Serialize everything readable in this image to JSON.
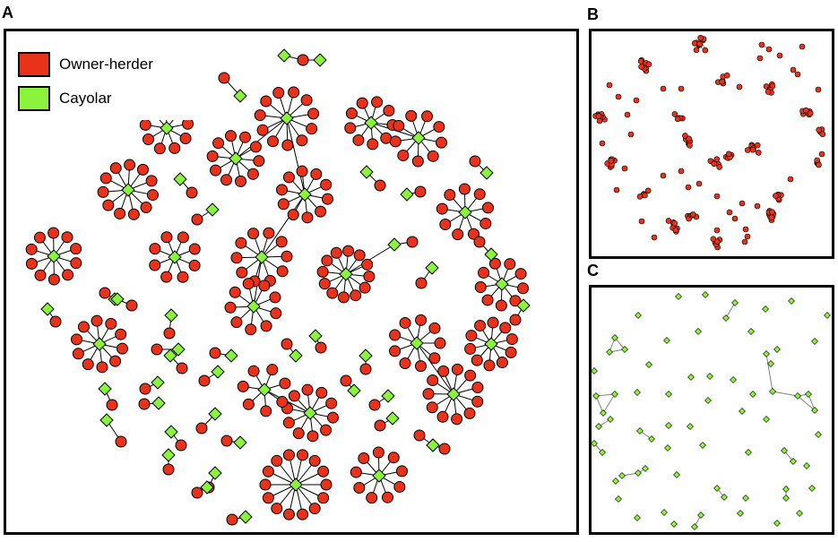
{
  "panels": {
    "a": "A",
    "b": "B",
    "c": "C"
  },
  "legend": {
    "owner": "Owner-herder",
    "cayolar": "Cayolar"
  },
  "colors": {
    "owner_fill": "#e8321b",
    "cayolar_fill": "#8cf33c",
    "edge_a": "#000000",
    "edge_c": "#808080",
    "frame": "#000000"
  }
}
